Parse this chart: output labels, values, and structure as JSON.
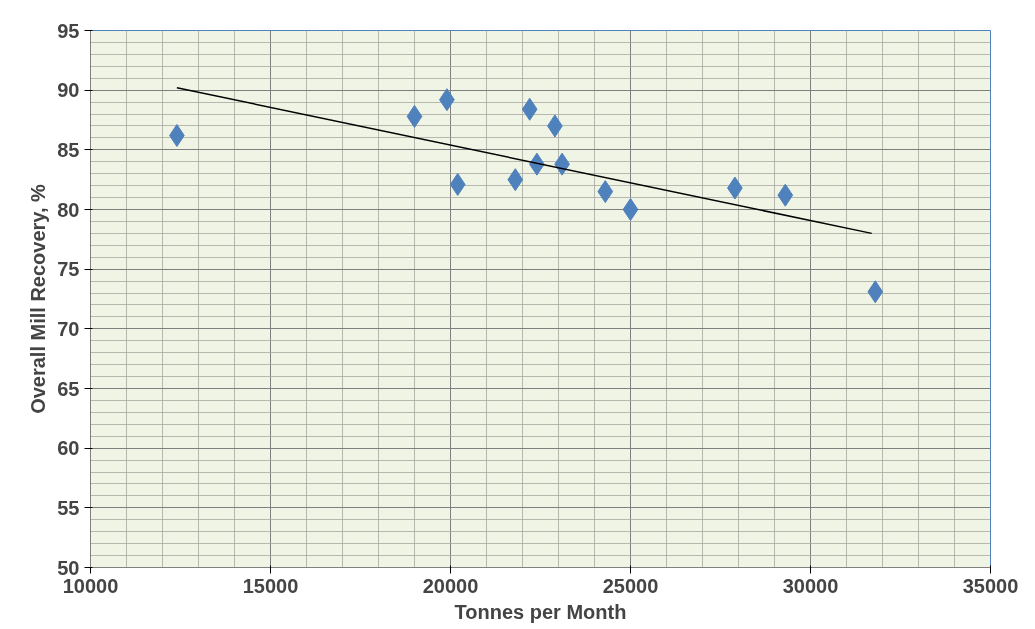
{
  "chart_data": {
    "type": "scatter",
    "xlabel": "Tonnes per Month",
    "ylabel": "Overall Mill Recovery, %",
    "xlim": [
      10000,
      35000
    ],
    "xticks": [
      10000,
      15000,
      20000,
      25000,
      30000,
      35000
    ],
    "ylim": [
      50,
      95
    ],
    "yticks": [
      50,
      55,
      60,
      65,
      70,
      75,
      80,
      85,
      90,
      95
    ],
    "grid": true,
    "series": [
      {
        "color": "#4f81bd",
        "marker": "diamond",
        "x": [
          12400,
          19000,
          19900,
          20200,
          21800,
          22200,
          22400,
          22900,
          23100,
          24300,
          25000,
          27900,
          29300,
          31800
        ],
        "values": [
          86.2,
          87.8,
          89.2,
          82.1,
          82.5,
          88.4,
          83.8,
          87.0,
          83.8,
          81.5,
          80.0,
          81.8,
          81.2,
          73.1
        ]
      },
      {
        "type": "line",
        "color": "#000000",
        "marker": "none",
        "x": [
          12400,
          31700
        ],
        "values": [
          90.2,
          78.0
        ]
      }
    ]
  }
}
